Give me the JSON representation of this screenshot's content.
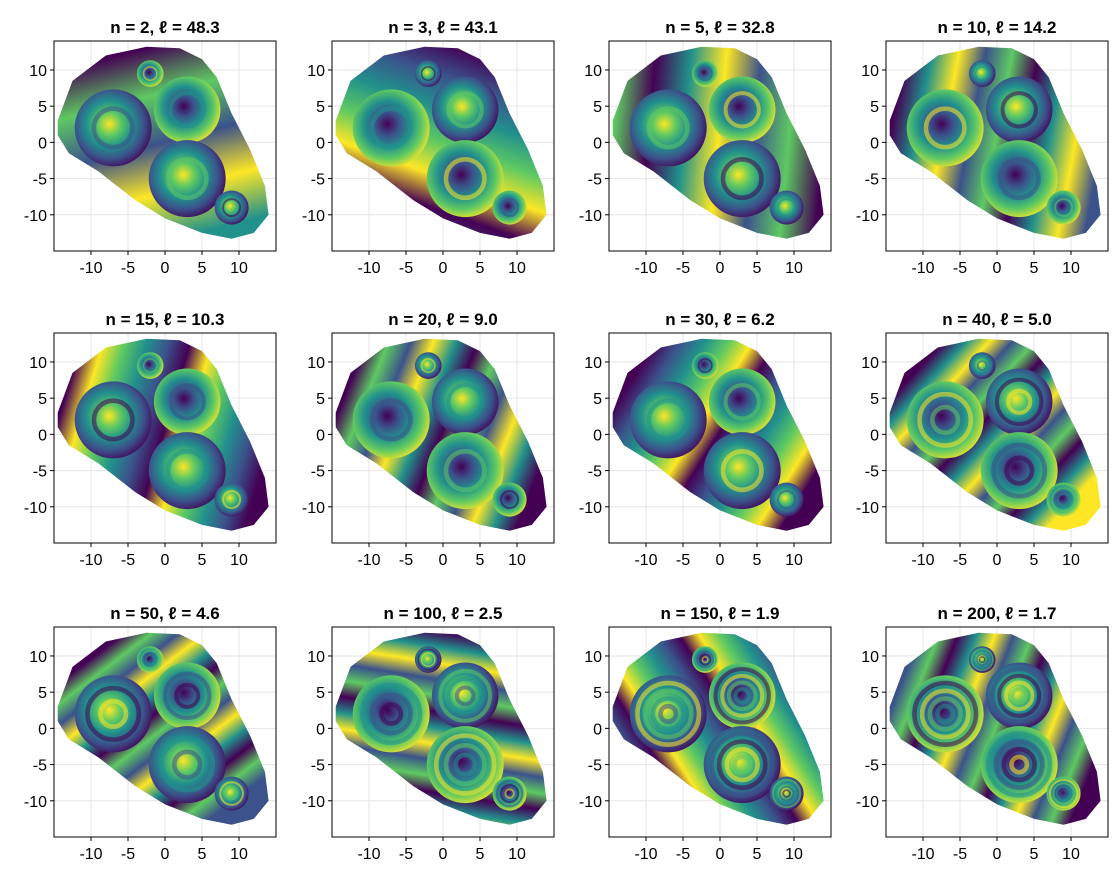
{
  "figure": {
    "rows": 3,
    "cols": 4,
    "colormap": "viridis",
    "colors": [
      "#440154",
      "#3b528b",
      "#21918c",
      "#5ec962",
      "#fde725"
    ]
  },
  "chart_data": [
    {
      "type": "heatmap",
      "title": "n = 2, ℓ = 48.3",
      "n": 2,
      "ell": 48.3,
      "xlabel": "",
      "ylabel": "",
      "xlim": [
        -15,
        15
      ],
      "ylim": [
        -15,
        14
      ],
      "xticks": [
        -10,
        -5,
        0,
        5,
        10
      ],
      "yticks": [
        -10,
        -5,
        0,
        5,
        10
      ],
      "xtick_labels": [
        "-10",
        "-5",
        "0",
        "5",
        "10"
      ],
      "ytick_labels": [
        "-10",
        "-5",
        "0",
        "5",
        "10"
      ],
      "grid": true,
      "legend": "none"
    },
    {
      "type": "heatmap",
      "title": "n = 3, ℓ = 43.1",
      "n": 3,
      "ell": 43.1,
      "xlabel": "",
      "ylabel": "",
      "xlim": [
        -15,
        15
      ],
      "ylim": [
        -15,
        14
      ],
      "xticks": [
        -10,
        -5,
        0,
        5,
        10
      ],
      "yticks": [
        -10,
        -5,
        0,
        5,
        10
      ],
      "xtick_labels": [
        "-10",
        "-5",
        "0",
        "5",
        "10"
      ],
      "ytick_labels": [
        "-10",
        "-5",
        "0",
        "5",
        "10"
      ],
      "grid": true,
      "legend": "none"
    },
    {
      "type": "heatmap",
      "title": "n = 5, ℓ = 32.8",
      "n": 5,
      "ell": 32.8,
      "xlabel": "",
      "ylabel": "",
      "xlim": [
        -15,
        15
      ],
      "ylim": [
        -15,
        14
      ],
      "xticks": [
        -10,
        -5,
        0,
        5,
        10
      ],
      "yticks": [
        -10,
        -5,
        0,
        5,
        10
      ],
      "xtick_labels": [
        "-10",
        "-5",
        "0",
        "5",
        "10"
      ],
      "ytick_labels": [
        "-10",
        "-5",
        "0",
        "5",
        "10"
      ],
      "grid": true,
      "legend": "none"
    },
    {
      "type": "heatmap",
      "title": "n = 10, ℓ = 14.2",
      "n": 10,
      "ell": 14.2,
      "xlabel": "",
      "ylabel": "",
      "xlim": [
        -15,
        15
      ],
      "ylim": [
        -15,
        14
      ],
      "xticks": [
        -10,
        -5,
        0,
        5,
        10
      ],
      "yticks": [
        -10,
        -5,
        0,
        5,
        10
      ],
      "xtick_labels": [
        "-10",
        "-5",
        "0",
        "5",
        "10"
      ],
      "ytick_labels": [
        "-10",
        "-5",
        "0",
        "5",
        "10"
      ],
      "grid": true,
      "legend": "none"
    },
    {
      "type": "heatmap",
      "title": "n = 15, ℓ = 10.3",
      "n": 15,
      "ell": 10.3,
      "xlabel": "",
      "ylabel": "",
      "xlim": [
        -15,
        15
      ],
      "ylim": [
        -15,
        14
      ],
      "xticks": [
        -10,
        -5,
        0,
        5,
        10
      ],
      "yticks": [
        -10,
        -5,
        0,
        5,
        10
      ],
      "xtick_labels": [
        "-10",
        "-5",
        "0",
        "5",
        "10"
      ],
      "ytick_labels": [
        "-10",
        "-5",
        "0",
        "5",
        "10"
      ],
      "grid": true,
      "legend": "none"
    },
    {
      "type": "heatmap",
      "title": "n = 20, ℓ = 9.0",
      "n": 20,
      "ell": 9.0,
      "xlabel": "",
      "ylabel": "",
      "xlim": [
        -15,
        15
      ],
      "ylim": [
        -15,
        14
      ],
      "xticks": [
        -10,
        -5,
        0,
        5,
        10
      ],
      "yticks": [
        -10,
        -5,
        0,
        5,
        10
      ],
      "xtick_labels": [
        "-10",
        "-5",
        "0",
        "5",
        "10"
      ],
      "ytick_labels": [
        "-10",
        "-5",
        "0",
        "5",
        "10"
      ],
      "grid": true,
      "legend": "none"
    },
    {
      "type": "heatmap",
      "title": "n = 30, ℓ = 6.2",
      "n": 30,
      "ell": 6.2,
      "xlabel": "",
      "ylabel": "",
      "xlim": [
        -15,
        15
      ],
      "ylim": [
        -15,
        14
      ],
      "xticks": [
        -10,
        -5,
        0,
        5,
        10
      ],
      "yticks": [
        -10,
        -5,
        0,
        5,
        10
      ],
      "xtick_labels": [
        "-10",
        "-5",
        "0",
        "5",
        "10"
      ],
      "ytick_labels": [
        "-10",
        "-5",
        "0",
        "5",
        "10"
      ],
      "grid": true,
      "legend": "none"
    },
    {
      "type": "heatmap",
      "title": "n = 40, ℓ = 5.0",
      "n": 40,
      "ell": 5.0,
      "xlabel": "",
      "ylabel": "",
      "xlim": [
        -15,
        15
      ],
      "ylim": [
        -15,
        14
      ],
      "xticks": [
        -10,
        -5,
        0,
        5,
        10
      ],
      "yticks": [
        -10,
        -5,
        0,
        5,
        10
      ],
      "xtick_labels": [
        "-10",
        "-5",
        "0",
        "5",
        "10"
      ],
      "ytick_labels": [
        "-10",
        "-5",
        "0",
        "5",
        "10"
      ],
      "grid": true,
      "legend": "none"
    },
    {
      "type": "heatmap",
      "title": "n = 50, ℓ = 4.6",
      "n": 50,
      "ell": 4.6,
      "xlabel": "",
      "ylabel": "",
      "xlim": [
        -15,
        15
      ],
      "ylim": [
        -15,
        14
      ],
      "xticks": [
        -10,
        -5,
        0,
        5,
        10
      ],
      "yticks": [
        -10,
        -5,
        0,
        5,
        10
      ],
      "xtick_labels": [
        "-10",
        "-5",
        "0",
        "5",
        "10"
      ],
      "ytick_labels": [
        "-10",
        "-5",
        "0",
        "5",
        "10"
      ],
      "grid": true,
      "legend": "none"
    },
    {
      "type": "heatmap",
      "title": "n = 100, ℓ = 2.5",
      "n": 100,
      "ell": 2.5,
      "xlabel": "",
      "ylabel": "",
      "xlim": [
        -15,
        15
      ],
      "ylim": [
        -15,
        14
      ],
      "xticks": [
        -10,
        -5,
        0,
        5,
        10
      ],
      "yticks": [
        -10,
        -5,
        0,
        5,
        10
      ],
      "xtick_labels": [
        "-10",
        "-5",
        "0",
        "5",
        "10"
      ],
      "ytick_labels": [
        "-10",
        "-5",
        "0",
        "5",
        "10"
      ],
      "grid": true,
      "legend": "none"
    },
    {
      "type": "heatmap",
      "title": "n = 150, ℓ = 1.9",
      "n": 150,
      "ell": 1.9,
      "xlabel": "",
      "ylabel": "",
      "xlim": [
        -15,
        15
      ],
      "ylim": [
        -15,
        14
      ],
      "xticks": [
        -10,
        -5,
        0,
        5,
        10
      ],
      "yticks": [
        -10,
        -5,
        0,
        5,
        10
      ],
      "xtick_labels": [
        "-10",
        "-5",
        "0",
        "5",
        "10"
      ],
      "ytick_labels": [
        "-10",
        "-5",
        "0",
        "5",
        "10"
      ],
      "grid": true,
      "legend": "none"
    },
    {
      "type": "heatmap",
      "title": "n = 200, ℓ = 1.7",
      "n": 200,
      "ell": 1.7,
      "xlabel": "",
      "ylabel": "",
      "xlim": [
        -15,
        15
      ],
      "ylim": [
        -15,
        14
      ],
      "xticks": [
        -10,
        -5,
        0,
        5,
        10
      ],
      "yticks": [
        -10,
        -5,
        0,
        5,
        10
      ],
      "xtick_labels": [
        "-10",
        "-5",
        "0",
        "5",
        "10"
      ],
      "ytick_labels": [
        "-10",
        "-5",
        "0",
        "5",
        "10"
      ],
      "grid": true,
      "legend": "none"
    }
  ]
}
